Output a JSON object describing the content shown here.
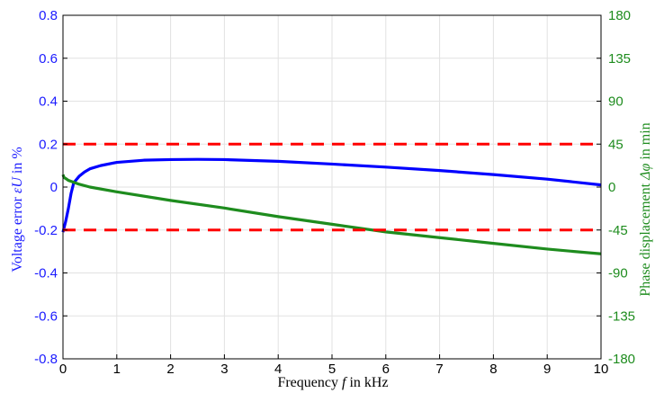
{
  "chart_data": {
    "type": "line",
    "xlabel": {
      "pre": "Frequency ",
      "var": "f",
      "post": " in kHz"
    },
    "ylabel_left": {
      "pre": "Voltage error ",
      "var": "εU",
      "post": " in %"
    },
    "ylabel_right": {
      "pre": "Phase displacement ",
      "var": "Δφ",
      "post": " in min"
    },
    "xlim": [
      0,
      10
    ],
    "ylim_left": [
      -0.8,
      0.8
    ],
    "ylim_right": [
      -180,
      180
    ],
    "x_ticks": [
      "0",
      "1",
      "2",
      "3",
      "4",
      "5",
      "6",
      "7",
      "8",
      "9",
      "10"
    ],
    "y_left_ticks": [
      "0.8",
      "0.6",
      "0.4",
      "0.2",
      "0",
      "-0.2",
      "-0.4",
      "-0.6",
      "-0.8"
    ],
    "y_right_ticks": [
      "180",
      "135",
      "90",
      "45",
      "0",
      "-45",
      "-90",
      "-135",
      "-180"
    ],
    "grid": true,
    "colors": {
      "voltage": "#0000ff",
      "phase": "#1e8c1e",
      "limits": "#ff0000",
      "left_axis": "#1a1aff",
      "right_axis": "#1e8c1e"
    },
    "series": [
      {
        "axis": "left",
        "color": "#0000ff",
        "x": [
          0,
          0.05,
          0.1,
          0.15,
          0.2,
          0.3,
          0.4,
          0.5,
          0.7,
          1,
          1.5,
          2,
          2.5,
          3,
          4,
          5,
          6,
          7,
          8,
          9,
          10
        ],
        "y": [
          -0.21,
          -0.16,
          -0.1,
          -0.03,
          0.02,
          0.05,
          0.07,
          0.085,
          0.1,
          0.115,
          0.125,
          0.128,
          0.129,
          0.128,
          0.12,
          0.107,
          0.093,
          0.077,
          0.058,
          0.037,
          0.01
        ]
      },
      {
        "axis": "right",
        "color": "#1e8c1e",
        "x": [
          0,
          0.02,
          0.05,
          0.1,
          0.15,
          0.2,
          0.3,
          0.5,
          1,
          2,
          3,
          4,
          5,
          6,
          7,
          8,
          9,
          10
        ],
        "y": [
          13,
          10,
          9,
          7,
          6,
          5,
          3,
          0,
          -5,
          -14,
          -22,
          -31,
          -39,
          -47,
          -53,
          -59,
          -65,
          -70
        ]
      },
      {
        "axis": "left",
        "color": "#ff0000",
        "dashed": true,
        "x": [
          0,
          10
        ],
        "y": [
          0.2,
          0.2
        ]
      },
      {
        "axis": "left",
        "color": "#ff0000",
        "dashed": true,
        "x": [
          0,
          10
        ],
        "y": [
          -0.2,
          -0.2
        ]
      }
    ]
  }
}
